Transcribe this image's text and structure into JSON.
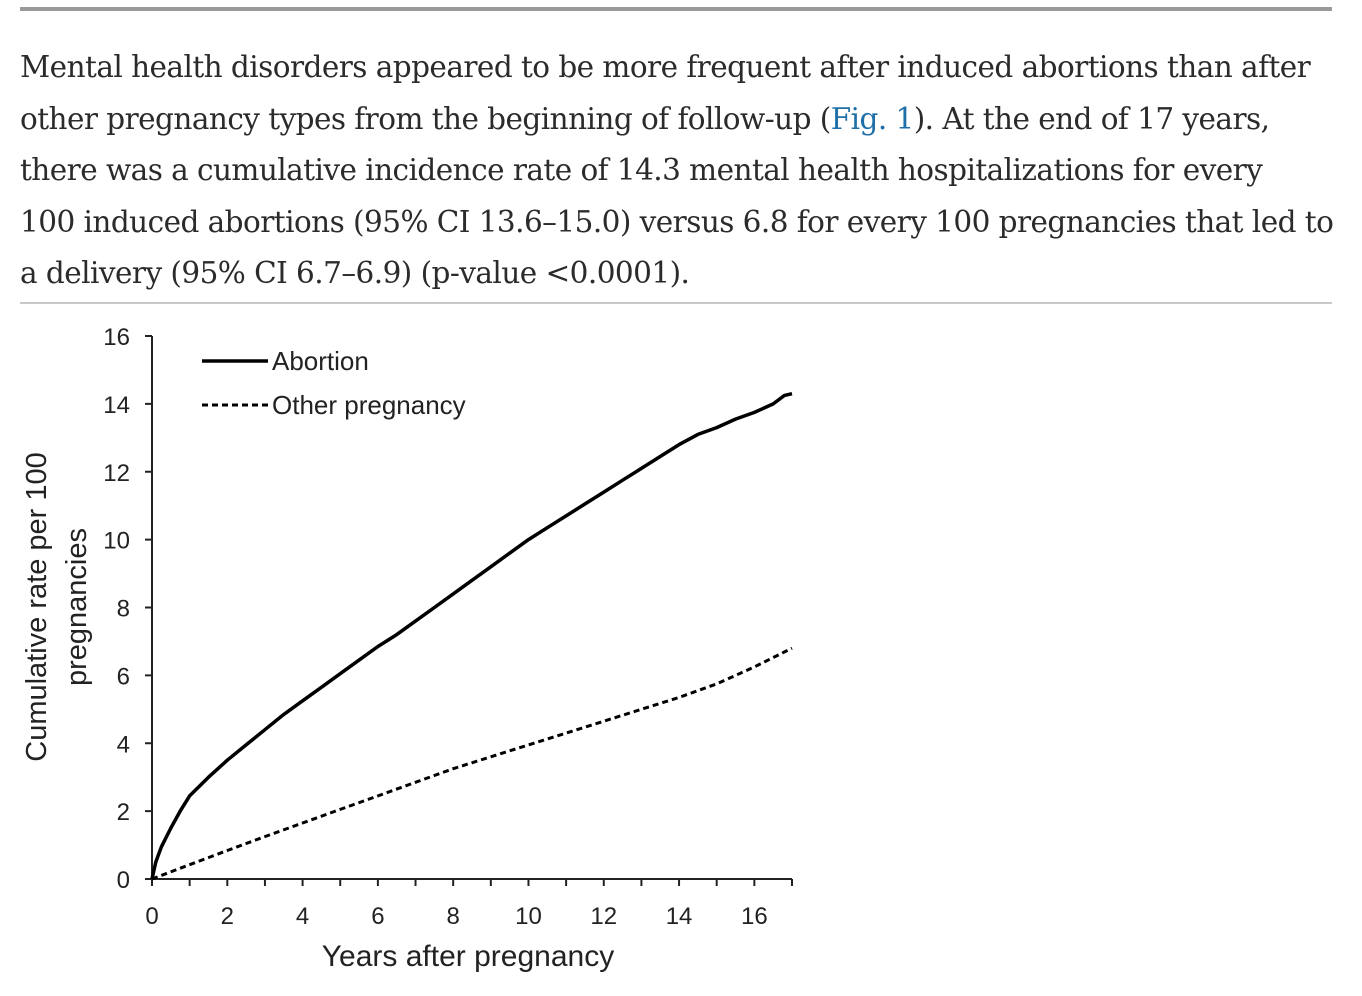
{
  "paragraph": {
    "line1": "Mental health disorders appeared to be more frequent after induced abortions than after",
    "line2_before": "other pregnancy types from the beginning of follow-up (",
    "line2_link": "Fig. 1",
    "line2_after": "). At the end of 17 years,",
    "line3": "there was a cumulative incidence rate of 14.3 mental health hospitalizations for every",
    "line4": "100 induced abortions (95% CI 13.6–15.0) versus 6.8 for every 100 pregnancies that led to",
    "line5": "a delivery (95% CI 6.7–6.9) (p-value <0.0001)."
  },
  "colors": {
    "link": "#1f6fa8",
    "text": "#2b2b2b",
    "series": "#000000"
  },
  "chart_data": {
    "type": "line",
    "title": "",
    "xlabel": "Years after pregnancy",
    "ylabel_line1": "Cumulative rate per 100",
    "ylabel_line2": "pregnancies",
    "xlim": [
      0,
      17
    ],
    "ylim": [
      0,
      16
    ],
    "xticks": [
      "0",
      "2",
      "4",
      "6",
      "8",
      "10",
      "12",
      "14",
      "16"
    ],
    "yticks": [
      "0",
      "2",
      "4",
      "6",
      "8",
      "10",
      "12",
      "14",
      "16"
    ],
    "grid": false,
    "legend": "top-left",
    "series": [
      {
        "name": "Abortion",
        "style": "solid",
        "x": [
          0,
          0.1,
          0.25,
          0.5,
          0.75,
          1,
          1.5,
          2,
          2.5,
          3,
          3.5,
          4,
          4.5,
          5,
          5.5,
          6,
          6.5,
          7,
          7.5,
          8,
          8.5,
          9,
          9.5,
          10,
          10.5,
          11,
          11.5,
          12,
          12.5,
          13,
          13.5,
          14,
          14.5,
          15,
          15.5,
          16,
          16.5,
          16.8,
          17
        ],
        "values": [
          0,
          0.5,
          0.95,
          1.5,
          2.0,
          2.45,
          3.0,
          3.5,
          3.95,
          4.4,
          4.85,
          5.25,
          5.65,
          6.05,
          6.45,
          6.85,
          7.2,
          7.6,
          8.0,
          8.4,
          8.8,
          9.2,
          9.6,
          10.0,
          10.35,
          10.7,
          11.05,
          11.4,
          11.75,
          12.1,
          12.45,
          12.8,
          13.1,
          13.3,
          13.55,
          13.75,
          14.0,
          14.25,
          14.3
        ]
      },
      {
        "name": "Other pregnancy",
        "style": "dashed",
        "x": [
          0,
          1,
          2,
          3,
          4,
          5,
          6,
          7,
          8,
          9,
          10,
          11,
          12,
          13,
          14,
          15,
          16,
          17
        ],
        "values": [
          0,
          0.42,
          0.84,
          1.25,
          1.65,
          2.05,
          2.45,
          2.85,
          3.25,
          3.6,
          3.95,
          4.3,
          4.65,
          5.0,
          5.35,
          5.75,
          6.25,
          6.8
        ]
      }
    ]
  }
}
